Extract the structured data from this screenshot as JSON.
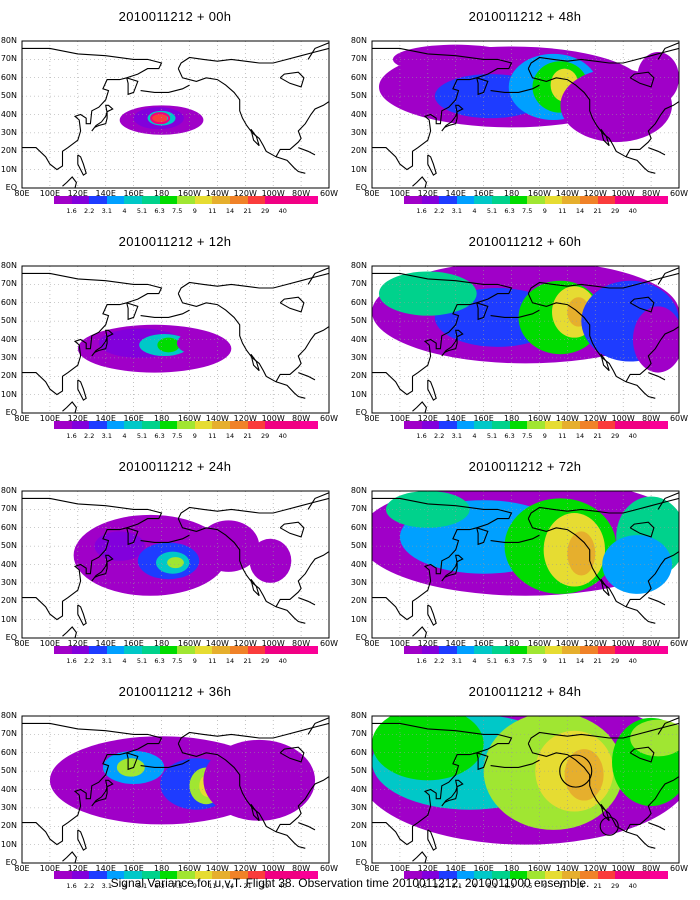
{
  "panels": [
    {
      "title": "2010011212 + 00h",
      "lead": "00h",
      "level": 0
    },
    {
      "title": "2010011212 + 48h",
      "lead": "48h",
      "level": 4
    },
    {
      "title": "2010011212 + 12h",
      "lead": "12h",
      "level": 1
    },
    {
      "title": "2010011212 + 60h",
      "lead": "60h",
      "level": 5
    },
    {
      "title": "2010011212 + 24h",
      "lead": "24h",
      "level": 2
    },
    {
      "title": "2010011212 + 72h",
      "lead": "72h",
      "level": 6
    },
    {
      "title": "2010011212 + 36h",
      "lead": "36h",
      "level": 3
    },
    {
      "title": "2010011212 + 84h",
      "lead": "84h",
      "level": 7
    }
  ],
  "lat_labels": [
    "80N",
    "70N",
    "60N",
    "50N",
    "40N",
    "30N",
    "20N",
    "10N",
    "EQ"
  ],
  "lon_labels": [
    "80E",
    "100E",
    "120E",
    "140E",
    "160E",
    "180",
    "160W",
    "140W",
    "120W",
    "100W",
    "80W",
    "60W"
  ],
  "colorbar": {
    "labels": [
      "1.6",
      "2.2",
      "3.1",
      "4",
      "5.1",
      "6.3",
      "7.5",
      "9",
      "11",
      "14",
      "21",
      "29",
      "40"
    ],
    "colors": [
      "#a000c8",
      "#8200dc",
      "#1e3cff",
      "#00a0ff",
      "#00c8c8",
      "#00d28c",
      "#00dc00",
      "#a0e632",
      "#e6dc32",
      "#e6af2d",
      "#f08228",
      "#fa3c3c",
      "#f00082"
    ]
  },
  "footer": "Signal Variance for u,v,T. Flight 38. Observation time 2010011212. 2010011000 ensemble."
}
